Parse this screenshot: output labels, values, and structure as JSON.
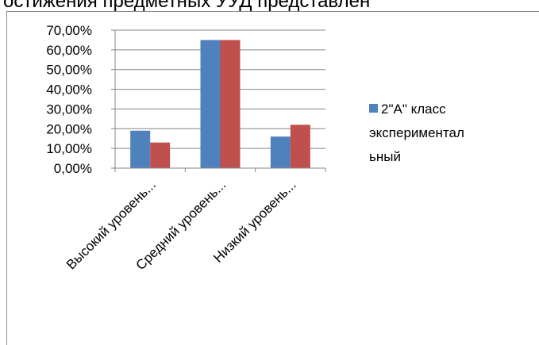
{
  "header": {
    "text": "остижения предметных УУД представлен"
  },
  "chart_data": {
    "type": "bar",
    "title": "",
    "xlabel": "",
    "ylabel": "",
    "categories": [
      "Высокий уровень...",
      "Средний уровень...",
      "Низкий уровень..."
    ],
    "series": [
      {
        "name": "2\"А\" класс экспериментальный",
        "values": [
          19,
          65,
          16
        ],
        "color": "#4f81bd"
      },
      {
        "name": "",
        "values": [
          13,
          65,
          22
        ],
        "color": "#c0504d"
      }
    ],
    "ylim": [
      0,
      70
    ],
    "yticks": [
      "0,00%",
      "10,00%",
      "20,00%",
      "30,00%",
      "40,00%",
      "50,00%",
      "60,00%",
      "70,00%"
    ],
    "grid": true,
    "legend_position": "right"
  }
}
